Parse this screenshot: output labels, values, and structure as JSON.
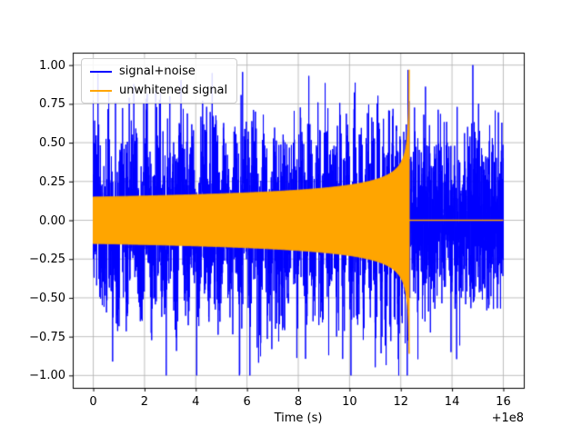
{
  "figure": {
    "background": "#ffffff",
    "axes_background": "#ffffff",
    "grid_color": "#b0b0b0",
    "frame_color": "#000000",
    "tick_color": "#000000"
  },
  "chart_data": {
    "type": "line",
    "title": "",
    "xlabel": "Time (s)",
    "ylabel": "",
    "x_offset_label": "+1e8",
    "xlim": [
      -0.8,
      16.8
    ],
    "ylim": [
      -1.08,
      1.08
    ],
    "xticks": [
      0,
      2,
      4,
      6,
      8,
      10,
      12,
      14,
      16
    ],
    "xtick_labels": [
      "0",
      "2",
      "4",
      "6",
      "8",
      "10",
      "12",
      "14",
      "16"
    ],
    "yticks": [
      -1.0,
      -0.75,
      -0.5,
      -0.25,
      0.0,
      0.25,
      0.5,
      0.75,
      1.0
    ],
    "ytick_labels": [
      "−1.00",
      "−0.75",
      "−0.50",
      "−0.25",
      "0.00",
      "0.25",
      "0.50",
      "0.75",
      "1.00"
    ],
    "grid": true,
    "legend": {
      "position": "upper left",
      "entries": [
        {
          "label": "signal+noise",
          "color": "#0000ff"
        },
        {
          "label": "unwhitened signal",
          "color": "#ffa500"
        }
      ]
    },
    "series": [
      {
        "name": "signal+noise",
        "color": "#0000ff",
        "kind": "dense random noise plus chirp",
        "x_range": [
          0,
          16
        ],
        "noise_sigma": 0.28,
        "peak_amplitude": 1.0,
        "n_points": 4000
      },
      {
        "name": "unwhitened signal",
        "color": "#ffa500",
        "kind": "inspiral chirp envelope, flat zero after merger",
        "x_range": [
          0,
          16
        ],
        "start_amplitude": 0.15,
        "merger_time": 12.33,
        "peak_amplitude": 0.97,
        "trough_amplitude": 0.86,
        "post_merger_value": 0.0
      }
    ]
  }
}
